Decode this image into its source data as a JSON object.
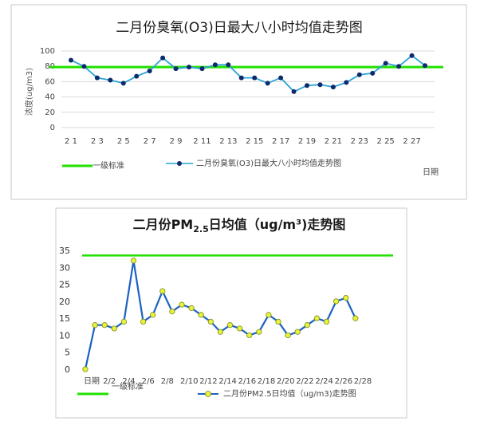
{
  "chart_data": [
    {
      "type": "line",
      "title": "二月份臭氧(O3)日最大八小时均值走势图",
      "ylabel": "浓度(ug/m3)",
      "xlabel": "日期",
      "ylim": [
        0,
        100
      ],
      "yticks": [
        0,
        20,
        40,
        60,
        80,
        100
      ],
      "x_tick_labels": [
        "2 1",
        "2 3",
        "2 5",
        "2 7",
        "2 9",
        "2 11",
        "2 13",
        "2 15",
        "2 17",
        "2 19",
        "2 21",
        "2 23",
        "2 25",
        "2 27"
      ],
      "standard": {
        "name": "一级标准",
        "value": 79,
        "color": "#22e000"
      },
      "series": [
        {
          "name": "二月份臭氧(O3)日最大八小时均值走势图",
          "color": "#2aa3d8",
          "marker_color": "#0d2a6b",
          "values": [
            88,
            80,
            65,
            62,
            58,
            67,
            74,
            91,
            77,
            79,
            77,
            82,
            82,
            65,
            65,
            58,
            65,
            47,
            55,
            56,
            53,
            59,
            69,
            71,
            84,
            80,
            94,
            81
          ]
        }
      ],
      "grid": true,
      "legend_position": "bottom"
    },
    {
      "type": "line",
      "title": "二月份PM2.5日均值（ug/m³)走势图",
      "title_parts": {
        "a": "二月份PM",
        "sub": "2.5",
        "b": "日均值（ug/m³)走势图"
      },
      "ylim": [
        0,
        35
      ],
      "yticks": [
        0,
        5,
        10,
        15,
        20,
        25,
        30,
        35
      ],
      "x_tick_labels": [
        "日期",
        "2/2",
        "2/4",
        "2/6",
        "2/8",
        "2/10",
        "2/12",
        "2/14",
        "2/16",
        "2/18",
        "2/20",
        "2/22",
        "2/24",
        "2/26",
        "2/28"
      ],
      "standard": {
        "name": "一级标准",
        "value": 33.5,
        "color": "#22e000"
      },
      "series": [
        {
          "name": "二月份PM2.5日均值（ug/m3)走势图",
          "color": "#1a62c2",
          "marker_color": "#e8f23a",
          "values": [
            0,
            13,
            13,
            12,
            14,
            32,
            14,
            16,
            23,
            17,
            19,
            18,
            16,
            14,
            11,
            13,
            12,
            10,
            11,
            16,
            14,
            10,
            11,
            13,
            15,
            14,
            20,
            21,
            15
          ]
        }
      ],
      "grid": false,
      "legend_position": "bottom"
    }
  ]
}
